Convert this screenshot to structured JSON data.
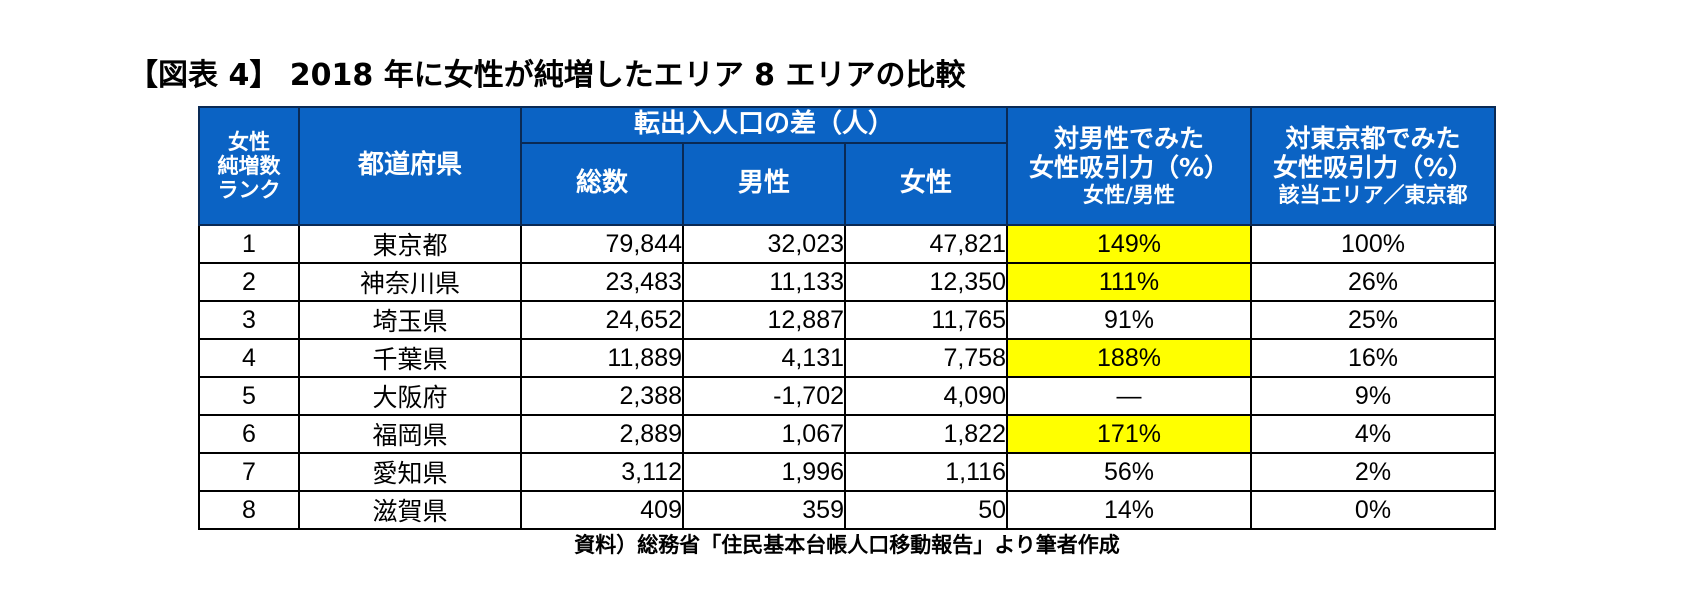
{
  "title": "【図表 4】 2018 年に女性が純増したエリア 8 エリアの比較",
  "headers": {
    "rank": [
      "女性",
      "純増数",
      "ランク"
    ],
    "prefecture": "都道府県",
    "migration_group": "転出入人口の差（人）",
    "total": "総数",
    "male": "男性",
    "female": "女性",
    "attraction_vs_male": [
      "対男性でみた",
      "女性吸引力（%）",
      "女性/男性"
    ],
    "attraction_vs_tokyo": [
      "対東京都でみた",
      "女性吸引力（%）",
      "該当エリア／東京都"
    ]
  },
  "rows": [
    {
      "rank": "1",
      "pref": "東京都",
      "total": "79,844",
      "male": "32,023",
      "female": "47,821",
      "vs_male": "149%",
      "vs_male_highlight": true,
      "vs_tokyo": "100%"
    },
    {
      "rank": "2",
      "pref": "神奈川県",
      "total": "23,483",
      "male": "11,133",
      "female": "12,350",
      "vs_male": "111%",
      "vs_male_highlight": true,
      "vs_tokyo": "26%"
    },
    {
      "rank": "3",
      "pref": "埼玉県",
      "total": "24,652",
      "male": "12,887",
      "female": "11,765",
      "vs_male": "91%",
      "vs_male_highlight": false,
      "vs_tokyo": "25%"
    },
    {
      "rank": "4",
      "pref": "千葉県",
      "total": "11,889",
      "male": "4,131",
      "female": "7,758",
      "vs_male": "188%",
      "vs_male_highlight": true,
      "vs_tokyo": "16%"
    },
    {
      "rank": "5",
      "pref": "大阪府",
      "total": "2,388",
      "male": "-1,702",
      "female": "4,090",
      "vs_male": "—",
      "vs_male_highlight": false,
      "vs_tokyo": "9%"
    },
    {
      "rank": "6",
      "pref": "福岡県",
      "total": "2,889",
      "male": "1,067",
      "female": "1,822",
      "vs_male": "171%",
      "vs_male_highlight": true,
      "vs_tokyo": "4%"
    },
    {
      "rank": "7",
      "pref": "愛知県",
      "total": "3,112",
      "male": "1,996",
      "female": "1,116",
      "vs_male": "56%",
      "vs_male_highlight": false,
      "vs_tokyo": "2%"
    },
    {
      "rank": "8",
      "pref": "滋賀県",
      "total": "409",
      "male": "359",
      "female": "50",
      "vs_male": "14%",
      "vs_male_highlight": false,
      "vs_tokyo": "0%"
    }
  ],
  "source": "資料）総務省「住民基本台帳人口移動報告」より筆者作成",
  "colors": {
    "header_bg": "#0b63c4",
    "highlight": "#ffff00"
  }
}
